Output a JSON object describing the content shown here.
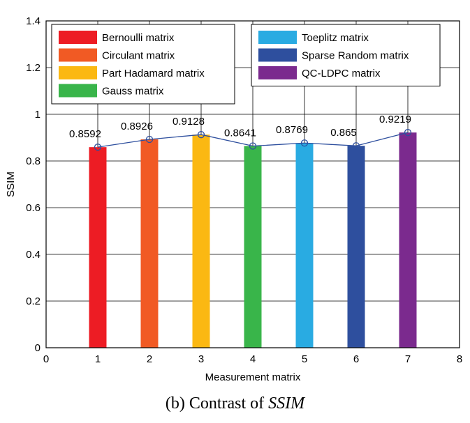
{
  "chart_data": {
    "type": "bar",
    "title": "",
    "xlabel": "Measurement matrix",
    "ylabel": "SSIM",
    "xlim": [
      0,
      8
    ],
    "ylim": [
      0,
      1.4
    ],
    "grid": true,
    "x_ticks": [
      "0",
      "1",
      "2",
      "3",
      "4",
      "5",
      "6",
      "7",
      "8"
    ],
    "y_ticks": [
      "0",
      "0.2",
      "0.4",
      "0.6",
      "0.8",
      "1",
      "1.2",
      "1.4"
    ],
    "x": [
      1,
      2,
      3,
      4,
      5,
      6,
      7
    ],
    "values": [
      0.8592,
      0.8926,
      0.9128,
      0.8641,
      0.8769,
      0.865,
      0.9219
    ],
    "data_labels": [
      "0.8592",
      "0.8926",
      "0.9128",
      "0.8641",
      "0.8769",
      "0.865",
      "0.9219"
    ],
    "series": [
      {
        "name": "Bernoulli matrix",
        "color": "#ed1c24"
      },
      {
        "name": "Circulant matrix",
        "color": "#f15a24"
      },
      {
        "name": "Part Hadamard matrix",
        "color": "#fbb812"
      },
      {
        "name": "Gauss matrix",
        "color": "#39b54a"
      },
      {
        "name": "Toeplitz matrix",
        "color": "#29abe2"
      },
      {
        "name": "Sparse Random matrix",
        "color": "#2e4f9e"
      },
      {
        "name": "QC-LDPC matrix",
        "color": "#7b2a8e"
      }
    ],
    "line_color": "#2e4f9e",
    "legend_position": "top (two boxes: top-left and top-right)"
  },
  "caption": {
    "prefix": "(b) Contrast of ",
    "emphasis": "SSIM"
  }
}
